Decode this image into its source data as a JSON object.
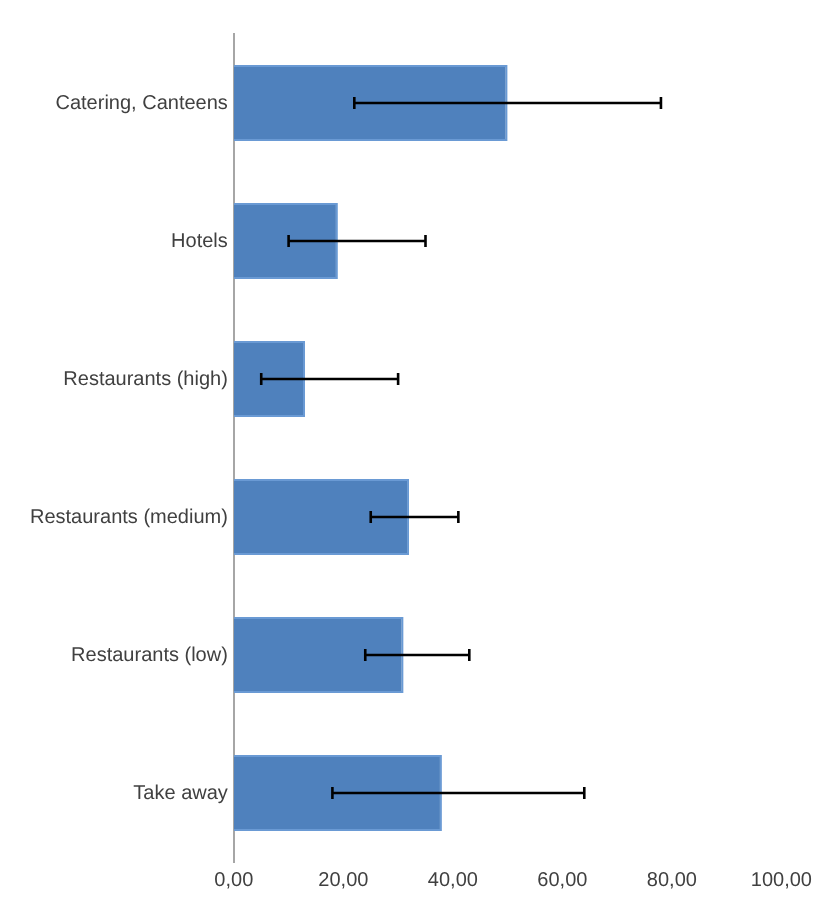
{
  "chart_data": {
    "type": "bar",
    "orientation": "horizontal",
    "categories": [
      "Catering, Canteens",
      "Hotels",
      "Restaurants (high)",
      "Restaurants (medium)",
      "Restaurants (low)",
      "Take away"
    ],
    "values": [
      50,
      19,
      13,
      32,
      31,
      38
    ],
    "errors": [
      [
        22,
        78
      ],
      [
        10,
        35
      ],
      [
        5,
        30
      ],
      [
        25,
        41
      ],
      [
        24,
        43
      ],
      [
        18,
        64
      ]
    ],
    "color": "#4f81bd",
    "xlim": [
      0,
      100
    ],
    "xticks": [
      {
        "value": 0,
        "label": "0,00"
      },
      {
        "value": 20,
        "label": "20,00"
      },
      {
        "value": 40,
        "label": "40,00"
      },
      {
        "value": 60,
        "label": "60,00"
      },
      {
        "value": 80,
        "label": "80,00"
      },
      {
        "value": 100,
        "label": "100,00"
      }
    ],
    "grid": false,
    "legend": false
  }
}
